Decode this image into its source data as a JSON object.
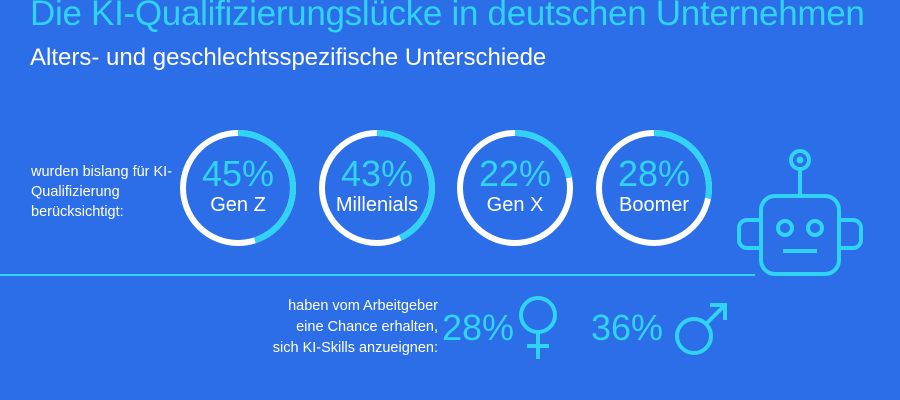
{
  "header": {
    "title": "Die KI-Qualifizierungslücke in deutschen Unternehmen",
    "subtitle": "Alters- und geschlechtsspezifische Unterschiede"
  },
  "section1": {
    "lead": "wurden bislang für KI-Qualifizierung berücksichtigt:"
  },
  "section2": {
    "lead_lines": [
      "haben vom Arbeitgeber",
      "eine Chance erhalten,",
      "sich KI-Skills anzueignen:"
    ],
    "female_pct": "28%",
    "male_pct": "36%"
  },
  "colors": {
    "background": "#2c6de8",
    "accent": "#2fd3f5",
    "text": "#ffffff"
  },
  "icons": [
    "female-symbol-icon",
    "male-symbol-icon",
    "robot-icon"
  ],
  "chart_data": [
    {
      "type": "donut",
      "title": "wurden bislang für KI-Qualifizierung berücksichtigt",
      "categories": [
        "Gen Z",
        "Millenials",
        "Gen X",
        "Boomer"
      ],
      "values": [
        45,
        43,
        22,
        28
      ],
      "labels": [
        "45%",
        "43%",
        "22%",
        "28%"
      ],
      "unit": "%"
    },
    {
      "type": "bar",
      "title": "haben vom Arbeitgeber eine Chance erhalten, sich KI-Skills anzueignen",
      "categories": [
        "weiblich",
        "männlich"
      ],
      "values": [
        28,
        36
      ],
      "unit": "%"
    }
  ]
}
